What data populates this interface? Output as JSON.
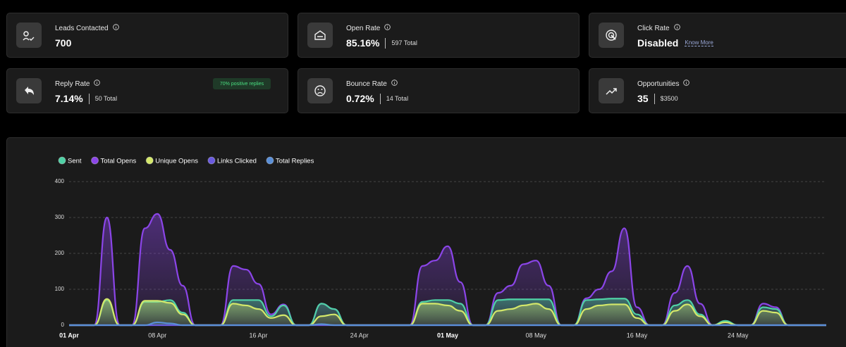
{
  "cards": [
    {
      "label": "Leads Contacted",
      "value": "700"
    },
    {
      "label": "Open Rate",
      "value": "85.16%",
      "total": "597 Total"
    },
    {
      "label": "Click Rate",
      "value": "Disabled",
      "link": "Know More"
    },
    {
      "label": "Reply Rate",
      "value": "7.14%",
      "total": "50 Total",
      "badge": "70% positive replies"
    },
    {
      "label": "Bounce Rate",
      "value": "0.72%",
      "total": "14 Total"
    },
    {
      "label": "Opportunities",
      "value": "35",
      "total": "$3500"
    }
  ],
  "chart_data": {
    "type": "area",
    "categories": [
      "01 Apr",
      null,
      null,
      null,
      null,
      null,
      null,
      "08 Apr",
      null,
      null,
      null,
      null,
      null,
      null,
      null,
      "16 Apr",
      null,
      null,
      null,
      null,
      null,
      null,
      null,
      "24 Apr",
      null,
      null,
      null,
      null,
      null,
      null,
      "01 May",
      null,
      null,
      null,
      null,
      null,
      null,
      "08 May",
      null,
      null,
      null,
      null,
      null,
      null,
      null,
      "16 May",
      null,
      null,
      null,
      null,
      null,
      null,
      null,
      "24 May",
      null,
      null,
      null,
      null,
      null,
      null,
      null
    ],
    "ylim": [
      0,
      400
    ],
    "yticks": [
      0,
      100,
      200,
      300,
      400
    ],
    "grid": true,
    "legend": "top-left",
    "series": [
      {
        "name": "Sent",
        "color": "#4fd1a5",
        "values": [
          0,
          0,
          0,
          70,
          0,
          0,
          65,
          65,
          70,
          35,
          0,
          0,
          0,
          70,
          70,
          70,
          25,
          55,
          0,
          0,
          60,
          45,
          0,
          0,
          0,
          0,
          0,
          0,
          65,
          70,
          70,
          60,
          0,
          0,
          70,
          72,
          72,
          72,
          72,
          0,
          0,
          70,
          72,
          74,
          74,
          30,
          0,
          0,
          55,
          70,
          30,
          0,
          12,
          0,
          0,
          50,
          45,
          0,
          0,
          0,
          0
        ]
      },
      {
        "name": "Total Opens",
        "color": "#8b45e8",
        "values": [
          0,
          0,
          0,
          300,
          0,
          0,
          270,
          310,
          210,
          110,
          0,
          0,
          0,
          165,
          155,
          115,
          30,
          58,
          0,
          0,
          60,
          45,
          0,
          0,
          0,
          0,
          0,
          0,
          165,
          180,
          220,
          120,
          0,
          0,
          90,
          110,
          170,
          180,
          110,
          0,
          0,
          75,
          100,
          150,
          270,
          50,
          0,
          0,
          90,
          165,
          60,
          0,
          10,
          0,
          0,
          60,
          50,
          0,
          0,
          0,
          0
        ]
      },
      {
        "name": "Unique Opens",
        "color": "#d4e86a",
        "values": [
          0,
          0,
          0,
          73,
          0,
          0,
          68,
          68,
          62,
          30,
          0,
          0,
          0,
          60,
          55,
          45,
          20,
          28,
          0,
          0,
          25,
          30,
          0,
          0,
          0,
          0,
          0,
          0,
          60,
          60,
          55,
          40,
          0,
          0,
          40,
          45,
          55,
          60,
          45,
          0,
          0,
          45,
          55,
          58,
          58,
          20,
          0,
          0,
          40,
          58,
          25,
          0,
          8,
          0,
          0,
          40,
          35,
          0,
          0,
          0,
          0
        ]
      },
      {
        "name": "Links Clicked",
        "color": "#6a5ae0",
        "values": [
          0,
          0,
          0,
          0,
          0,
          0,
          0,
          0,
          0,
          0,
          0,
          0,
          0,
          0,
          0,
          0,
          0,
          0,
          0,
          0,
          0,
          0,
          0,
          0,
          0,
          0,
          0,
          0,
          0,
          0,
          0,
          0,
          0,
          0,
          0,
          0,
          0,
          0,
          0,
          0,
          0,
          0,
          0,
          0,
          0,
          0,
          0,
          0,
          0,
          0,
          0,
          0,
          0,
          0,
          0,
          0,
          0,
          0,
          0,
          0,
          0
        ]
      },
      {
        "name": "Total Replies",
        "color": "#5a8fd8",
        "values": [
          0,
          0,
          0,
          0,
          0,
          0,
          0,
          8,
          5,
          0,
          0,
          0,
          0,
          0,
          0,
          0,
          0,
          0,
          0,
          0,
          3,
          0,
          0,
          0,
          0,
          0,
          0,
          0,
          0,
          0,
          0,
          0,
          0,
          0,
          0,
          0,
          0,
          0,
          0,
          0,
          0,
          0,
          0,
          0,
          0,
          0,
          0,
          0,
          0,
          0,
          0,
          0,
          0,
          0,
          0,
          0,
          0,
          0,
          0,
          0,
          0
        ]
      }
    ]
  }
}
